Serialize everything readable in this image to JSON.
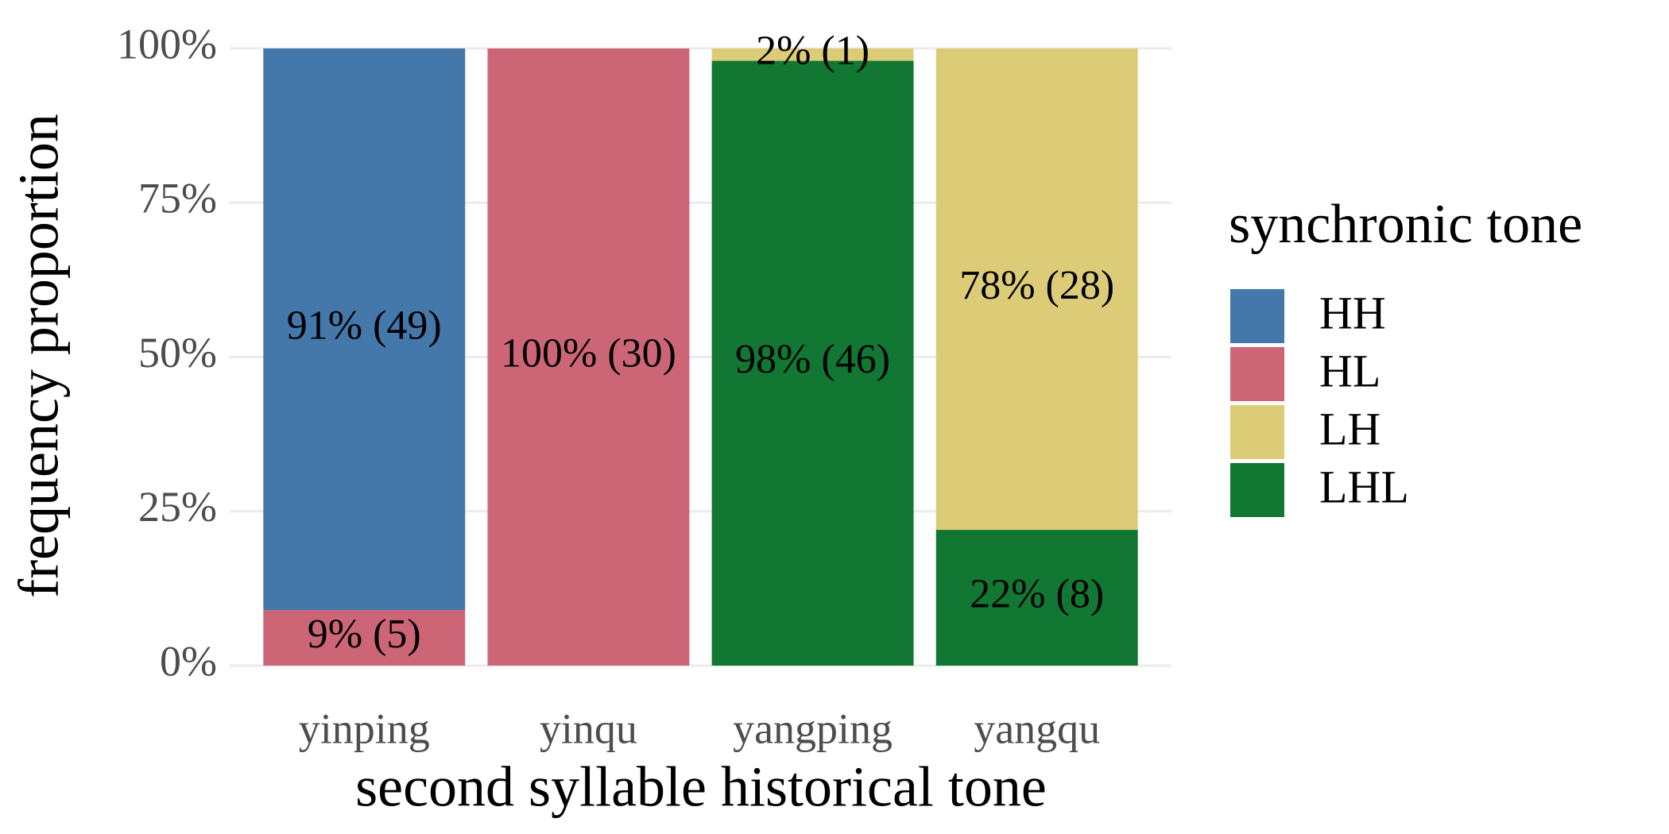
{
  "chart_data": {
    "type": "stacked_bar",
    "x_label": "second syllable historical tone",
    "y_label": "frequency proportion",
    "legend_title": "synchronic tone",
    "legend": "right",
    "grid": true,
    "categories": [
      "yinping",
      "yinqu",
      "yangping",
      "yangqu"
    ],
    "series": [
      {
        "name": "HH",
        "color": "#4477aa",
        "values": [
          91,
          null,
          null,
          null
        ],
        "value_labels": [
          "91% (49)",
          null,
          null,
          null
        ]
      },
      {
        "name": "HL",
        "color": "#cc6677",
        "values": [
          9,
          100,
          null,
          null
        ],
        "value_labels": [
          "9% (5)",
          "100% (30)",
          null,
          null
        ]
      },
      {
        "name": "LH",
        "color": "#ddcc77",
        "values": [
          null,
          null,
          2,
          78
        ],
        "value_labels": [
          null,
          null,
          "2% (1)",
          "78% (28)"
        ]
      },
      {
        "name": "LHL",
        "color": "#117733",
        "values": [
          null,
          null,
          98,
          22
        ],
        "value_labels": [
          null,
          null,
          "98% (46)",
          "22% (8)"
        ]
      }
    ],
    "ylim": [
      0,
      100
    ],
    "yticks": [
      {
        "value": 0,
        "label": "0%"
      },
      {
        "value": 25,
        "label": "25%"
      },
      {
        "value": 50,
        "label": "50%"
      },
      {
        "value": 75,
        "label": "75%"
      },
      {
        "value": 100,
        "label": "100%"
      }
    ]
  }
}
